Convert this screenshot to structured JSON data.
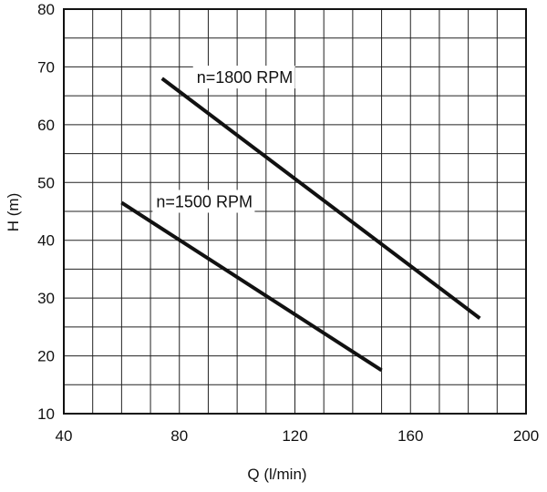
{
  "chart_data": {
    "type": "line",
    "title": "",
    "xlabel": "Q   (l/min)",
    "ylabel": "H   (m)",
    "xlim": [
      40,
      200
    ],
    "ylim": [
      10,
      80
    ],
    "x_ticks": [
      40,
      80,
      120,
      160,
      200
    ],
    "y_ticks": [
      10,
      20,
      30,
      40,
      50,
      60,
      70,
      80
    ],
    "x_minor_step": 10,
    "y_minor_step": 5,
    "grid": true,
    "series": [
      {
        "name": "n=1800 RPM",
        "x": [
          74,
          184
        ],
        "y": [
          68,
          26.5
        ]
      },
      {
        "name": "n=1500 RPM",
        "x": [
          60,
          150
        ],
        "y": [
          46.5,
          17.5
        ]
      }
    ]
  },
  "colors": {
    "line": "#111111",
    "grid": "#222222",
    "background": "#ffffff"
  }
}
